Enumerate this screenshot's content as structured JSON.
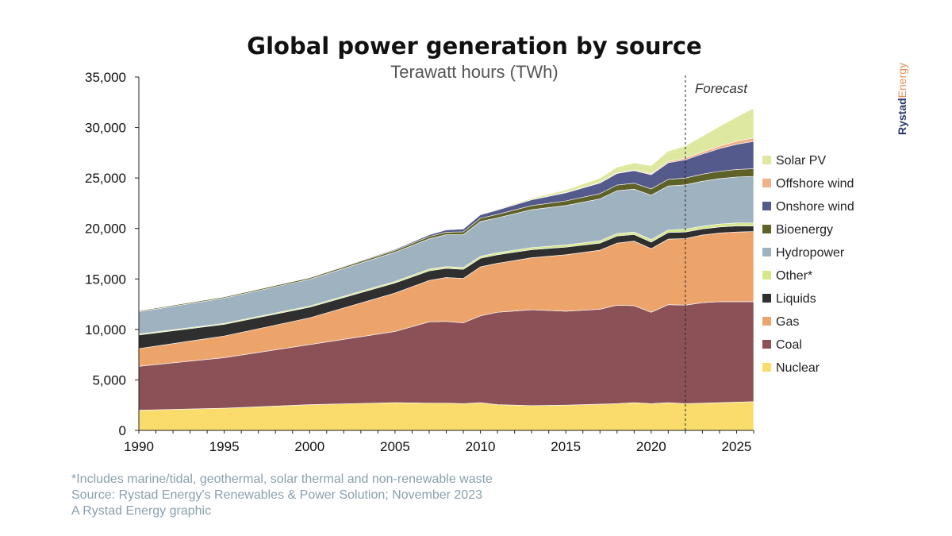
{
  "chart_data": {
    "type": "area",
    "stacked": true,
    "title": "Global power generation by source",
    "subtitle": "Terawatt hours (TWh)",
    "ylim": [
      0,
      35000
    ],
    "xlim": [
      1990,
      2026
    ],
    "yticks": [
      0,
      5000,
      10000,
      15000,
      20000,
      25000,
      30000,
      35000
    ],
    "ytick_labels": [
      "0",
      "5,000",
      "10,000",
      "15,000",
      "20,000",
      "25,000",
      "30,000",
      "35,000"
    ],
    "xticks": [
      1990,
      1995,
      2000,
      2005,
      2010,
      2015,
      2020,
      2025
    ],
    "xtick_labels": [
      "1990",
      "1995",
      "2000",
      "2005",
      "2010",
      "2015",
      "2020",
      "2025"
    ],
    "forecast_start": 2022,
    "forecast_label": "Forecast",
    "legend_position": "right",
    "years": [
      1990,
      1995,
      2000,
      2005,
      2007,
      2008,
      2009,
      2010,
      2011,
      2013,
      2015,
      2017,
      2018,
      2019,
      2020,
      2021,
      2022,
      2023,
      2024,
      2025,
      2026
    ],
    "series": [
      {
        "name": "Nuclear",
        "color": "#f9dc6b",
        "values": [
          2000,
          2200,
          2550,
          2750,
          2700,
          2700,
          2650,
          2750,
          2550,
          2450,
          2500,
          2600,
          2650,
          2750,
          2650,
          2750,
          2650,
          2700,
          2750,
          2800,
          2850
        ]
      },
      {
        "name": "Coal",
        "color": "#8b5157",
        "values": [
          4350,
          5000,
          5950,
          7050,
          8050,
          8100,
          8000,
          8600,
          9150,
          9500,
          9300,
          9400,
          9750,
          9600,
          9050,
          9700,
          9750,
          9950,
          10000,
          9950,
          9900
        ]
      },
      {
        "name": "Gas",
        "color": "#eda46b",
        "values": [
          1750,
          2150,
          2650,
          3800,
          4100,
          4350,
          4400,
          4850,
          4850,
          5150,
          5600,
          5850,
          6150,
          6400,
          6300,
          6500,
          6600,
          6700,
          6800,
          6900,
          6950
        ]
      },
      {
        "name": "Liquids",
        "color": "#2f2f2f",
        "values": [
          1350,
          1150,
          1050,
          1000,
          950,
          900,
          900,
          850,
          850,
          800,
          750,
          700,
          700,
          650,
          650,
          650,
          650,
          600,
          600,
          600,
          550
        ]
      },
      {
        "name": "Other*",
        "color": "#d4e78b",
        "values": [
          100,
          100,
          120,
          150,
          170,
          180,
          185,
          190,
          200,
          210,
          220,
          230,
          240,
          245,
          250,
          260,
          270,
          280,
          290,
          300,
          310
        ]
      },
      {
        "name": "Hydropower",
        "color": "#9fb2c0",
        "values": [
          2200,
          2500,
          2650,
          2900,
          3000,
          3150,
          3250,
          3450,
          3450,
          3750,
          3900,
          4150,
          4250,
          4250,
          4400,
          4350,
          4400,
          4450,
          4500,
          4550,
          4600
        ]
      },
      {
        "name": "Bioenergy",
        "color": "#5e6128",
        "values": [
          100,
          120,
          140,
          190,
          230,
          250,
          280,
          320,
          350,
          400,
          460,
          520,
          560,
          590,
          620,
          650,
          680,
          700,
          720,
          740,
          760
        ]
      },
      {
        "name": "Onshore wind",
        "color": "#555a8c",
        "values": [
          4,
          20,
          30,
          100,
          180,
          230,
          290,
          350,
          430,
          580,
          800,
          1050,
          1150,
          1250,
          1400,
          1650,
          1800,
          2000,
          2250,
          2500,
          2700
        ]
      },
      {
        "name": "Offshore wind",
        "color": "#f0b088",
        "values": [
          0,
          0,
          0,
          1,
          3,
          4,
          6,
          8,
          12,
          20,
          30,
          45,
          55,
          70,
          90,
          130,
          170,
          210,
          250,
          300,
          350
        ]
      },
      {
        "name": "Solar PV",
        "color": "#dfe8a0",
        "values": [
          0,
          1,
          2,
          5,
          8,
          12,
          20,
          35,
          65,
          140,
          250,
          450,
          560,
          690,
          820,
          1030,
          1200,
          1550,
          1950,
          2400,
          2950
        ]
      }
    ],
    "footnote": "*Includes marine/tidal, geothermal, solar thermal and non-renewable waste",
    "source": "Source: Rystad Energy's Renewables & Power Solution; November 2023",
    "credit": "A Rystad Energy graphic",
    "brand": {
      "part1": "Rystad",
      "part2": "Energy"
    }
  }
}
